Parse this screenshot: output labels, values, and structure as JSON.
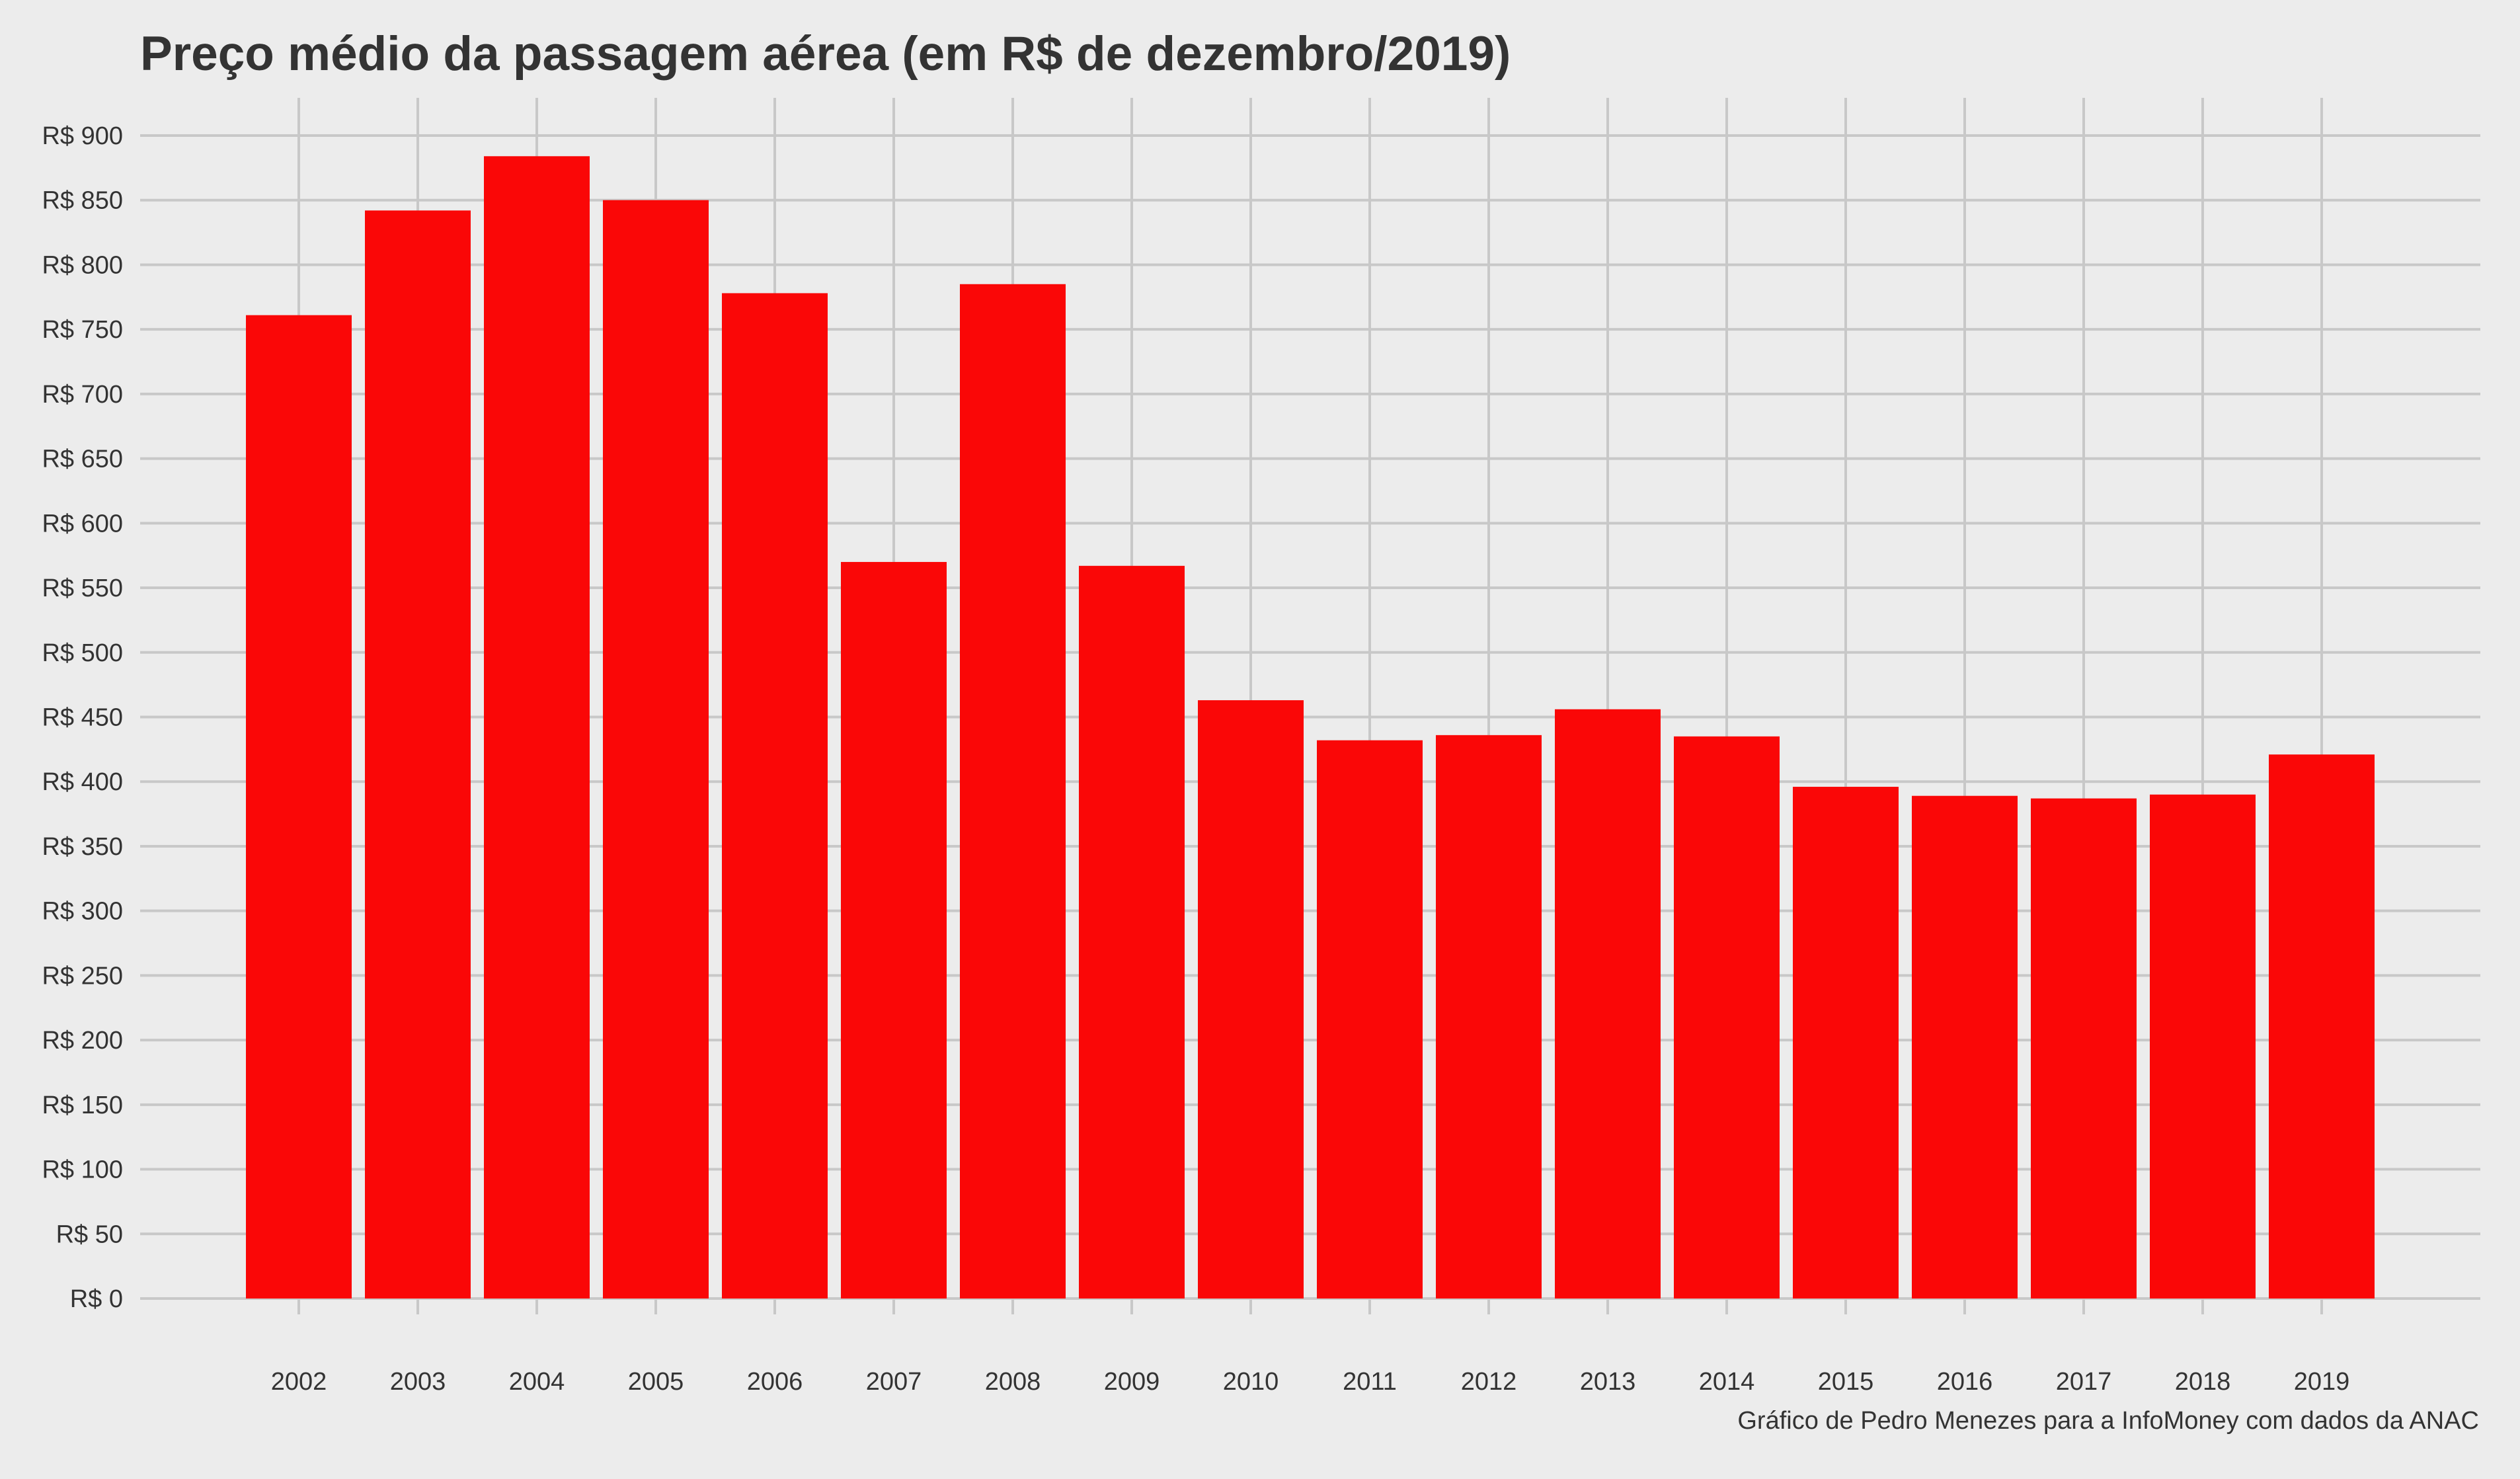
{
  "chart_data": {
    "type": "bar",
    "title": "Preço médio da passagem aérea (em R$ de dezembro/2019)",
    "caption": "Gráfico de Pedro Menezes para a InfoMoney com dados da ANAC",
    "xlabel": "",
    "ylabel": "",
    "categories": [
      "2002",
      "2003",
      "2004",
      "2005",
      "2006",
      "2007",
      "2008",
      "2009",
      "2010",
      "2011",
      "2012",
      "2013",
      "2014",
      "2015",
      "2016",
      "2017",
      "2018",
      "2019"
    ],
    "values": [
      761,
      842,
      884,
      850,
      778,
      570,
      785,
      567,
      463,
      432,
      436,
      456,
      435,
      396,
      389,
      387,
      390,
      421
    ],
    "y_ticks": [
      0,
      50,
      100,
      150,
      200,
      250,
      300,
      350,
      400,
      450,
      500,
      550,
      600,
      650,
      700,
      750,
      800,
      850,
      900
    ],
    "y_tick_labels": [
      "R$ 0",
      "R$ 50",
      "R$ 100",
      "R$ 150",
      "R$ 200",
      "R$ 250",
      "R$ 300",
      "R$ 350",
      "R$ 400",
      "R$ 450",
      "R$ 500",
      "R$ 550",
      "R$ 600",
      "R$ 650",
      "R$ 700",
      "R$ 750",
      "R$ 800",
      "R$ 850",
      "R$ 900"
    ],
    "ylim": [
      0,
      900
    ],
    "grid": true,
    "legend": "none",
    "bar_color": "#fa0707",
    "grid_color": "#c8c8c8",
    "background_color": "#ececec"
  }
}
